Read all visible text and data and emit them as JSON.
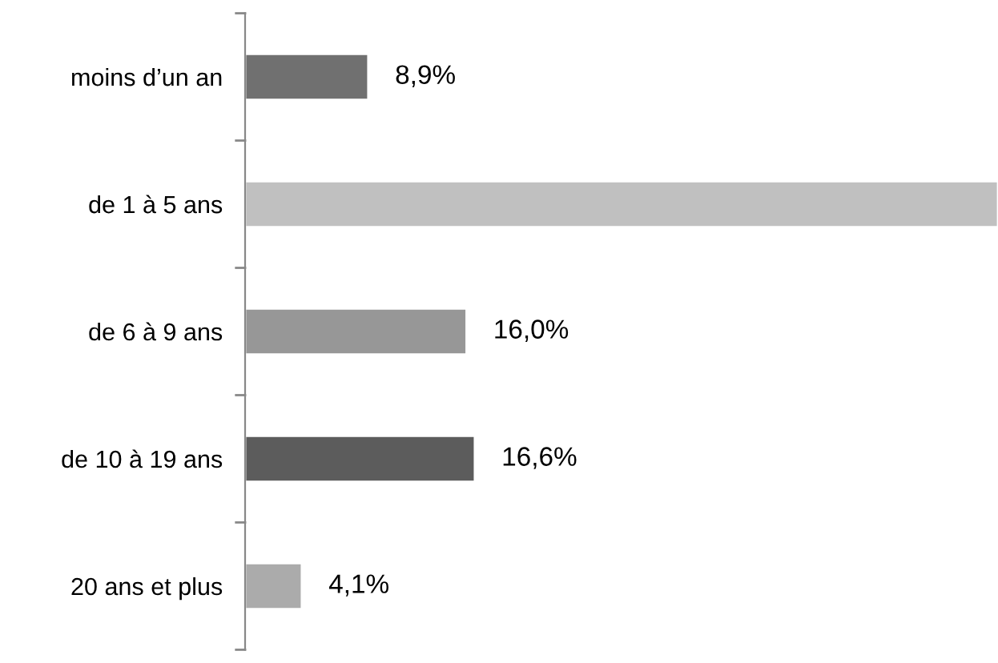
{
  "chart_data": {
    "type": "bar",
    "orientation": "horizontal",
    "categories": [
      "moins d’un an",
      "de 1 à 5 ans",
      "de 6 à 9 ans",
      "de 10 à 19 ans",
      "20 ans et plus"
    ],
    "values": [
      8.9,
      54.4,
      16.0,
      16.6,
      4.1
    ],
    "colors": [
      "#707070",
      "#c0c0c0",
      "#979797",
      "#5c5c5c",
      "#ababab"
    ],
    "value_labels": [
      "8,9%",
      null,
      "16,0%",
      "16,6%",
      "4,1%"
    ],
    "grid": false,
    "legend": false
  }
}
